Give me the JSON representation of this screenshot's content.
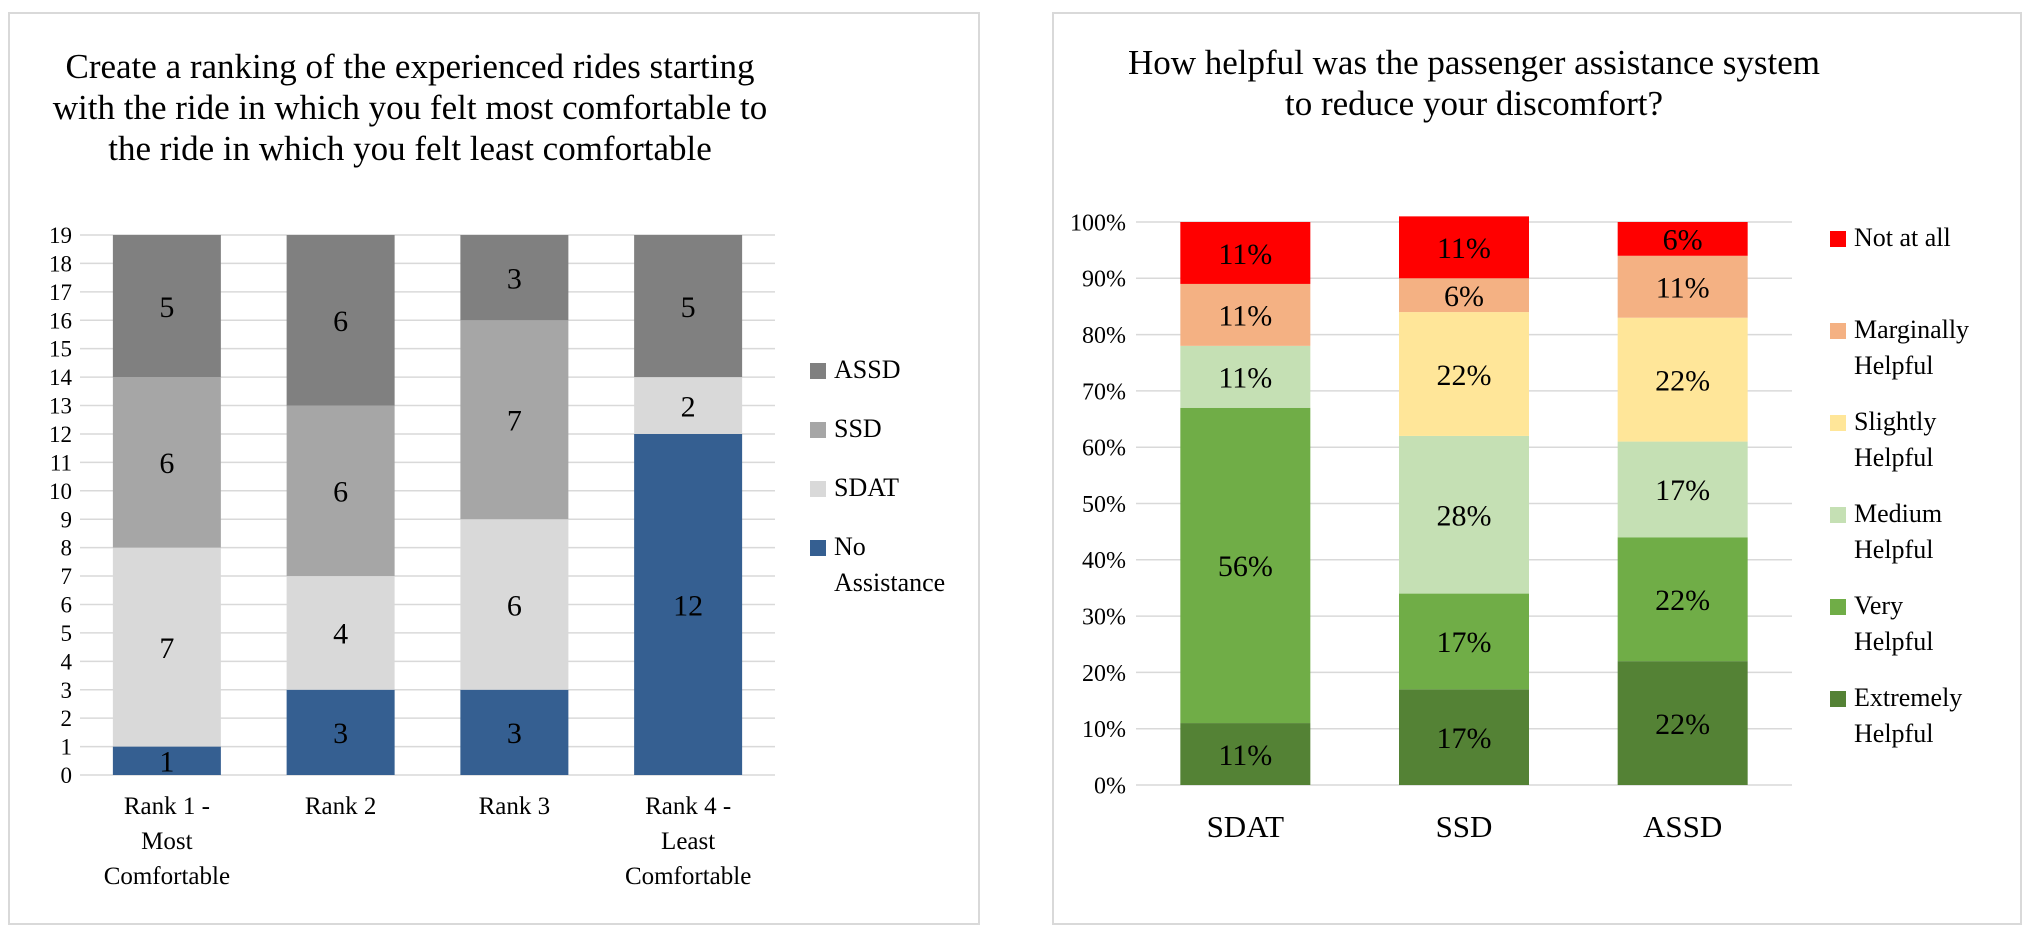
{
  "chart_data": [
    {
      "type": "bar",
      "stacked": true,
      "title": "Create a ranking of the experienced rides starting with the ride in which you felt most comfortable to the ride in which you felt least comfortable",
      "categories": [
        "Rank 1 - Most Comfortable",
        "Rank 2",
        "Rank 3",
        "Rank 4 - Least Comfortable"
      ],
      "category_lines": [
        [
          "Rank 1 -",
          "Most",
          "Comfortable"
        ],
        [
          "Rank 2"
        ],
        [
          "Rank 3"
        ],
        [
          "Rank 4 -",
          "Least",
          "Comfortable"
        ]
      ],
      "series": [
        {
          "name": "No Assistance",
          "legend_lines": [
            "No",
            "Assistance"
          ],
          "color": "#355f91",
          "values": [
            1,
            3,
            3,
            12
          ]
        },
        {
          "name": "SDAT",
          "legend_lines": [
            "SDAT"
          ],
          "color": "#d9d9d9",
          "values": [
            7,
            4,
            6,
            2
          ]
        },
        {
          "name": "SSD",
          "legend_lines": [
            "SSD"
          ],
          "color": "#a6a6a6",
          "values": [
            6,
            6,
            7,
            0
          ]
        },
        {
          "name": "ASSD",
          "legend_lines": [
            "ASSD"
          ],
          "color": "#808080",
          "values": [
            5,
            6,
            3,
            5
          ]
        }
      ],
      "ylim": [
        0,
        19
      ],
      "yticks": [
        0,
        1,
        2,
        3,
        4,
        5,
        6,
        7,
        8,
        9,
        10,
        11,
        12,
        13,
        14,
        15,
        16,
        17,
        18,
        19
      ],
      "xlabel": "",
      "ylabel": "",
      "grid": true,
      "legend": "right"
    },
    {
      "type": "bar",
      "stacked": true,
      "percent": true,
      "title": "How helpful was the passenger assistance system to reduce your discomfort?",
      "categories": [
        "SDAT",
        "SSD",
        "ASSD"
      ],
      "series": [
        {
          "name": "Extremely Helpful",
          "legend_lines": [
            "Extremely",
            "Helpful"
          ],
          "color": "#548235",
          "values": [
            11,
            17,
            22
          ]
        },
        {
          "name": "Very Helpful",
          "legend_lines": [
            "Very",
            "Helpful"
          ],
          "color": "#70ad47",
          "values": [
            56,
            17,
            22
          ]
        },
        {
          "name": "Medium Helpful",
          "legend_lines": [
            "Medium",
            "Helpful"
          ],
          "color": "#c5e0b4",
          "values": [
            11,
            28,
            17
          ]
        },
        {
          "name": "Slightly Helpful",
          "legend_lines": [
            "Slightly",
            "Helpful"
          ],
          "color": "#ffe699",
          "values": [
            0,
            22,
            22
          ]
        },
        {
          "name": "Marginally Helpful",
          "legend_lines": [
            "Marginally",
            "Helpful"
          ],
          "color": "#f4b183",
          "values": [
            11,
            6,
            11
          ]
        },
        {
          "name": "Not at all",
          "legend_lines": [
            "Not at all"
          ],
          "color": "#ff0000",
          "values": [
            11,
            11,
            6
          ]
        }
      ],
      "ylim": [
        0,
        100
      ],
      "yticks": [
        0,
        10,
        20,
        30,
        40,
        50,
        60,
        70,
        80,
        90,
        100
      ],
      "tick_suffix": "%",
      "xlabel": "",
      "ylabel": "",
      "grid": true,
      "legend": "right"
    }
  ]
}
